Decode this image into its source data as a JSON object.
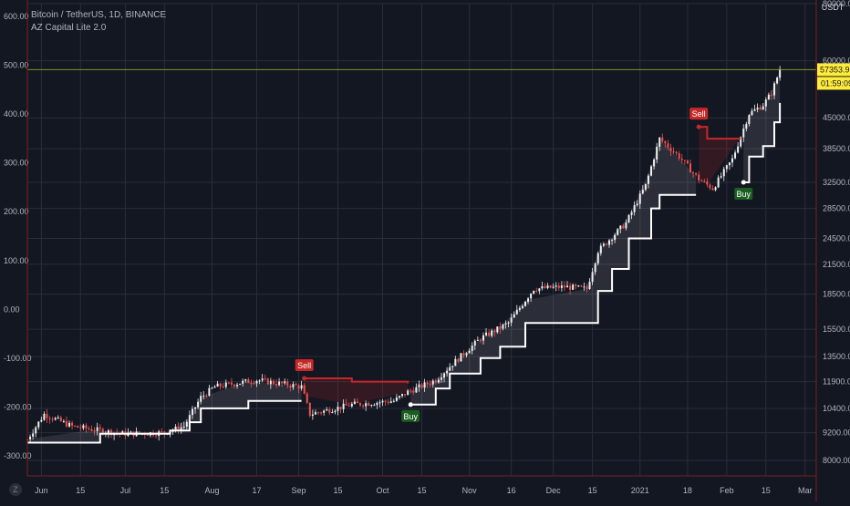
{
  "header": {
    "symbol_line": "Bitcoin / TetherUS, 1D, BINANCE",
    "indicator_name": "AZ Capital Lite 2.0"
  },
  "right_axis": {
    "currency": "USDT",
    "price_label": "57353.99",
    "countdown_label": "01:59:09",
    "ticks": [
      "80000.00",
      "60000.00",
      "45000.00",
      "38500.00",
      "32500.00",
      "28500.00",
      "24500.00",
      "21500.00",
      "18500.00",
      "15500.00",
      "13500.00",
      "11900.00",
      "10400.00",
      "9200.00",
      "8000.00"
    ]
  },
  "left_axis": {
    "ticks": [
      "600.00",
      "500.00",
      "400.00",
      "300.00",
      "200.00",
      "100.00",
      "0.00",
      "-100.00",
      "-200.00",
      "-300.00"
    ]
  },
  "time_axis": {
    "labels": [
      "Jun",
      "15",
      "Jul",
      "15",
      "Aug",
      "17",
      "Sep",
      "15",
      "Oct",
      "15",
      "Nov",
      "16",
      "Dec",
      "15",
      "2021",
      "18",
      "Feb",
      "15",
      "Mar"
    ]
  },
  "signals": [
    {
      "text": "Sell",
      "type": "sell"
    },
    {
      "text": "Buy",
      "type": "buy"
    },
    {
      "text": "Sell",
      "type": "sell"
    },
    {
      "text": "Buy",
      "type": "buy"
    }
  ],
  "logo_text": "Z",
  "colors": {
    "background": "#131722",
    "grid": "#2a2e39",
    "candle_up": "#f0f0f0",
    "candle_down": "#ef5350",
    "stop_line_long": "#ffffff",
    "stop_line_short": "#c62828",
    "sell_label": "#c62828",
    "buy_label": "#1b5e20",
    "price_tag": "#ffeb3b",
    "frame": "#7f1d1d"
  },
  "chart_data": {
    "type": "candlestick",
    "title": "Bitcoin / TetherUS, 1D, BINANCE",
    "y_axis_right": {
      "label": "USDT",
      "scale": "log",
      "range": [
        7400,
        80000
      ]
    },
    "y_axis_left": {
      "range": [
        -300,
        600
      ]
    },
    "x_range": [
      "2020-05-27",
      "2021-03-05"
    ],
    "last_price": 57353.99,
    "indicator": {
      "name": "AZ Capital Lite 2.0",
      "trailing_stop_points": [
        {
          "date": "2020-05-27",
          "value": 8750,
          "mode": "long"
        },
        {
          "date": "2020-06-20",
          "value": 8750,
          "mode": "long"
        },
        {
          "date": "2020-06-22",
          "value": 9150,
          "mode": "long"
        },
        {
          "date": "2020-07-15",
          "value": 9150,
          "mode": "long"
        },
        {
          "date": "2020-07-17",
          "value": 9300,
          "mode": "long"
        },
        {
          "date": "2020-07-24",
          "value": 9700,
          "mode": "long"
        },
        {
          "date": "2020-07-28",
          "value": 10400,
          "mode": "long"
        },
        {
          "date": "2020-08-14",
          "value": 10800,
          "mode": "long"
        },
        {
          "date": "2020-09-02",
          "value": 10800,
          "mode": "long"
        },
        {
          "date": "2020-09-03",
          "value": 12100,
          "mode": "short"
        },
        {
          "date": "2020-09-20",
          "value": 11900,
          "mode": "short"
        },
        {
          "date": "2020-10-10",
          "value": 11800,
          "mode": "short"
        },
        {
          "date": "2020-10-11",
          "value": 10600,
          "mode": "long"
        },
        {
          "date": "2020-10-20",
          "value": 11500,
          "mode": "long"
        },
        {
          "date": "2020-10-25",
          "value": 12400,
          "mode": "long"
        },
        {
          "date": "2020-11-05",
          "value": 13400,
          "mode": "long"
        },
        {
          "date": "2020-11-12",
          "value": 14200,
          "mode": "long"
        },
        {
          "date": "2020-11-21",
          "value": 16000,
          "mode": "long"
        },
        {
          "date": "2020-12-13",
          "value": 16000,
          "mode": "long"
        },
        {
          "date": "2020-12-17",
          "value": 18800,
          "mode": "long"
        },
        {
          "date": "2020-12-22",
          "value": 21000,
          "mode": "long"
        },
        {
          "date": "2020-12-28",
          "value": 24500,
          "mode": "long"
        },
        {
          "date": "2021-01-05",
          "value": 28500,
          "mode": "long"
        },
        {
          "date": "2021-01-08",
          "value": 30500,
          "mode": "long"
        },
        {
          "date": "2021-01-21",
          "value": 30500,
          "mode": "long"
        },
        {
          "date": "2021-01-22",
          "value": 43000,
          "mode": "short"
        },
        {
          "date": "2021-01-25",
          "value": 40500,
          "mode": "short"
        },
        {
          "date": "2021-02-06",
          "value": 40500,
          "mode": "short"
        },
        {
          "date": "2021-02-07",
          "value": 32500,
          "mode": "long"
        },
        {
          "date": "2021-02-09",
          "value": 37000,
          "mode": "long"
        },
        {
          "date": "2021-02-14",
          "value": 39000,
          "mode": "long"
        },
        {
          "date": "2021-02-18",
          "value": 44000,
          "mode": "long"
        },
        {
          "date": "2021-02-20",
          "value": 48500,
          "mode": "long"
        }
      ],
      "signals": [
        {
          "text": "Sell",
          "date": "2020-09-03",
          "price": 12100
        },
        {
          "text": "Buy",
          "date": "2020-10-11",
          "price": 10600
        },
        {
          "text": "Sell",
          "date": "2021-01-22",
          "price": 43000
        },
        {
          "text": "Buy",
          "date": "2021-02-07",
          "price": 32500
        }
      ]
    },
    "price_path": [
      {
        "date": "2020-05-27",
        "price": 8900
      },
      {
        "date": "2020-06-02",
        "price": 10100
      },
      {
        "date": "2020-06-12",
        "price": 9500
      },
      {
        "date": "2020-06-30",
        "price": 9150
      },
      {
        "date": "2020-07-15",
        "price": 9200
      },
      {
        "date": "2020-07-22",
        "price": 9500
      },
      {
        "date": "2020-07-28",
        "price": 11000
      },
      {
        "date": "2020-08-02",
        "price": 11600
      },
      {
        "date": "2020-08-17",
        "price": 12000
      },
      {
        "date": "2020-09-02",
        "price": 11600
      },
      {
        "date": "2020-09-05",
        "price": 10100
      },
      {
        "date": "2020-09-20",
        "price": 10600
      },
      {
        "date": "2020-10-05",
        "price": 10800
      },
      {
        "date": "2020-10-10",
        "price": 11300
      },
      {
        "date": "2020-10-20",
        "price": 12000
      },
      {
        "date": "2020-10-27",
        "price": 13200
      },
      {
        "date": "2020-11-05",
        "price": 14800
      },
      {
        "date": "2020-11-15",
        "price": 16000
      },
      {
        "date": "2020-11-24",
        "price": 19000
      },
      {
        "date": "2020-12-05",
        "price": 19200
      },
      {
        "date": "2020-12-13",
        "price": 19000
      },
      {
        "date": "2020-12-17",
        "price": 23000
      },
      {
        "date": "2020-12-27",
        "price": 26500
      },
      {
        "date": "2021-01-03",
        "price": 32000
      },
      {
        "date": "2021-01-08",
        "price": 40500
      },
      {
        "date": "2021-01-15",
        "price": 37000
      },
      {
        "date": "2021-01-22",
        "price": 33000
      },
      {
        "date": "2021-01-27",
        "price": 31500
      },
      {
        "date": "2021-02-03",
        "price": 36500
      },
      {
        "date": "2021-02-09",
        "price": 46000
      },
      {
        "date": "2021-02-14",
        "price": 48000
      },
      {
        "date": "2021-02-17",
        "price": 51000
      },
      {
        "date": "2021-02-20",
        "price": 57353.99
      }
    ]
  }
}
